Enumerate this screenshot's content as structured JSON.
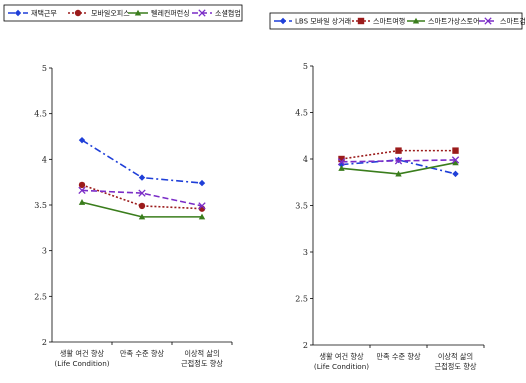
{
  "chart_data": [
    {
      "type": "line",
      "categories": [
        [
          "생활 여건 향상",
          "(Life Condition)"
        ],
        [
          "만족 수준 향상"
        ],
        [
          "이상적 삶의",
          "근접정도 향상"
        ]
      ],
      "ylim": [
        2,
        5
      ],
      "yticks": [
        "2",
        "2.5",
        "3",
        "3.5",
        "4",
        "4.5",
        "5"
      ],
      "legend_position": "top",
      "series": [
        {
          "name": "재택근무",
          "values": [
            4.21,
            3.8,
            3.74
          ],
          "color": "#1f3fd8",
          "dash": "dashdot",
          "marker": "diamond"
        },
        {
          "name": "모바일오피스",
          "values": [
            3.72,
            3.49,
            3.46
          ],
          "color": "#9b1b1b",
          "dash": "dotted",
          "marker": "circle"
        },
        {
          "name": "텔레컨퍼런싱",
          "values": [
            3.53,
            3.37,
            3.37
          ],
          "color": "#3a7d1c",
          "dash": "solid",
          "marker": "triangle"
        },
        {
          "name": "소셜협업",
          "values": [
            3.66,
            3.63,
            3.49
          ],
          "color": "#7a2cc7",
          "dash": "dashed",
          "marker": "x"
        }
      ]
    },
    {
      "type": "line",
      "categories": [
        [
          "생활 여건 향상",
          "(Life Condition)"
        ],
        [
          "만족 수준 향상"
        ],
        [
          "이상적 삶의",
          "근접정도 향상"
        ]
      ],
      "ylim": [
        2,
        5
      ],
      "yticks": [
        "2",
        "2.5",
        "3",
        "3.5",
        "4",
        "4.5",
        "5"
      ],
      "legend_position": "top",
      "series": [
        {
          "name": "LBS 모바일 상거래",
          "values": [
            3.94,
            3.99,
            3.84
          ],
          "color": "#1f3fd8",
          "dash": "dashdot",
          "marker": "diamond"
        },
        {
          "name": "스마트여행",
          "values": [
            4.0,
            4.09,
            4.09
          ],
          "color": "#9b1b1b",
          "dash": "dotted",
          "marker": "square"
        },
        {
          "name": "스마트가상스토어",
          "values": [
            3.9,
            3.84,
            3.96
          ],
          "color": "#3a7d1c",
          "dash": "solid",
          "marker": "triangle"
        },
        {
          "name": "스마트검색",
          "values": [
            3.97,
            3.98,
            3.99
          ],
          "color": "#7a2cc7",
          "dash": "dashed",
          "marker": "x"
        }
      ]
    }
  ]
}
